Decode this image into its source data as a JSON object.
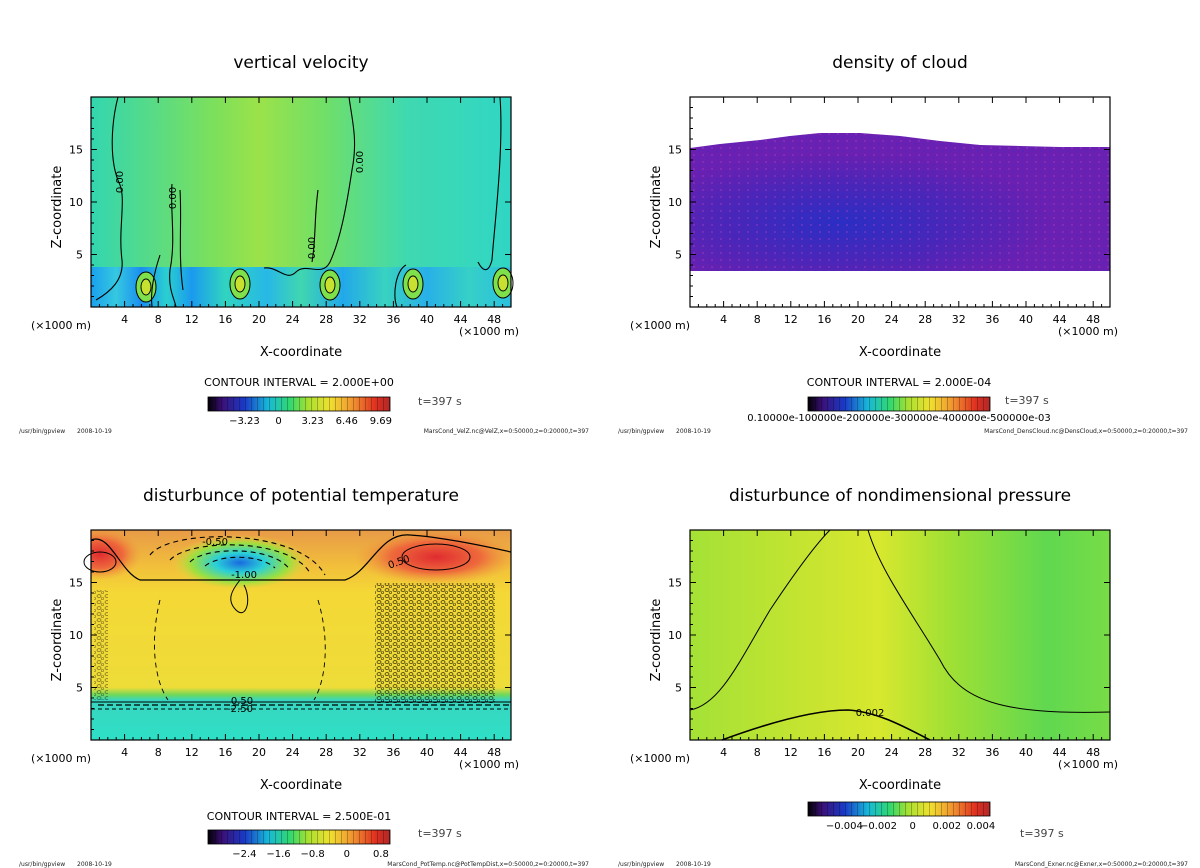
{
  "app": "/usr/bin/gpview",
  "date": "2008-10-19",
  "colors": {
    "background": "#ffffff",
    "frame": "#000000"
  },
  "chart_data": [
    {
      "id": "velz",
      "type": "heatmap",
      "title": "vertical velocity",
      "xlabel": "X-coordinate",
      "ylabel": "Z-coordinate",
      "x_unit_left": "(×1000 m)",
      "x_unit_right": "(×1000 m)",
      "xlim": [
        0,
        50
      ],
      "ylim": [
        0,
        20
      ],
      "xticks": [
        4,
        8,
        12,
        16,
        20,
        24,
        28,
        32,
        36,
        40,
        44,
        48
      ],
      "yticks": [
        5,
        10,
        15
      ],
      "contour_interval": "CONTOUR INTERVAL = 2.000E+00",
      "time": "t=397 s",
      "colorbar_ticks": [
        "−3.23",
        "0",
        "3.23",
        "6.46",
        "9.69"
      ],
      "contour_labels": [
        "0.00",
        "0.00",
        "0.00",
        "0.00"
      ],
      "footer_file": "MarsCond_VelZ.nc@VelZ,x=0:50000,z=0:20000,t=397"
    },
    {
      "id": "denscloud",
      "type": "heatmap",
      "title": "density of cloud",
      "xlabel": "X-coordinate",
      "ylabel": "Z-coordinate",
      "x_unit_left": "(×1000 m)",
      "x_unit_right": "(×1000 m)",
      "xlim": [
        0,
        50
      ],
      "ylim": [
        0,
        20
      ],
      "xticks": [
        4,
        8,
        12,
        16,
        20,
        24,
        28,
        32,
        36,
        40,
        44,
        48
      ],
      "yticks": [
        5,
        10,
        15
      ],
      "contour_interval": "CONTOUR INTERVAL = 2.000E-04",
      "time": "t=397 s",
      "colorbar_ticks": [
        "0.10000e-100000e-200000e-300000e-400000e-500000e-03"
      ],
      "contour_labels": [],
      "footer_file": "MarsCond_DensCloud.nc@DensCloud,x=0:50000,z=0:20000,t=397"
    },
    {
      "id": "pottemp",
      "type": "heatmap",
      "title": "disturbunce of potential temperature",
      "xlabel": "X-coordinate",
      "ylabel": "Z-coordinate",
      "x_unit_left": "(×1000 m)",
      "x_unit_right": "(×1000 m)",
      "xlim": [
        0,
        50
      ],
      "ylim": [
        0,
        20
      ],
      "xticks": [
        4,
        8,
        12,
        16,
        20,
        24,
        28,
        32,
        36,
        40,
        44,
        48
      ],
      "yticks": [
        5,
        10,
        15
      ],
      "contour_interval": "CONTOUR INTERVAL = 2.500E-01",
      "time": "t=397 s",
      "colorbar_ticks": [
        "−2.4",
        "−1.6",
        "−0.8",
        "0",
        "0.8"
      ],
      "contour_labels": [
        "-0.50",
        "-1.00",
        "0.50",
        "0.50",
        "-2.50"
      ],
      "footer_file": "MarsCond_PotTemp.nc@PotTempDist,x=0:50000,z=0:20000,t=397"
    },
    {
      "id": "exner",
      "type": "heatmap",
      "title": "disturbunce of nondimensional pressure",
      "xlabel": "X-coordinate",
      "ylabel": "Z-coordinate",
      "x_unit_left": "(×1000 m)",
      "x_unit_right": "(×1000 m)",
      "xlim": [
        0,
        50
      ],
      "ylim": [
        0,
        20
      ],
      "xticks": [
        4,
        8,
        12,
        16,
        20,
        24,
        28,
        32,
        36,
        40,
        44,
        48
      ],
      "yticks": [
        5,
        10,
        15
      ],
      "contour_interval": "",
      "time": "t=397 s",
      "colorbar_ticks": [
        "−0.004",
        "−0.002",
        "0",
        "0.002",
        "0.004"
      ],
      "contour_labels": [
        "0.002"
      ],
      "footer_file": "MarsCond_Exner.nc@Exner,x=0:50000,z=0:20000,t=397"
    }
  ]
}
